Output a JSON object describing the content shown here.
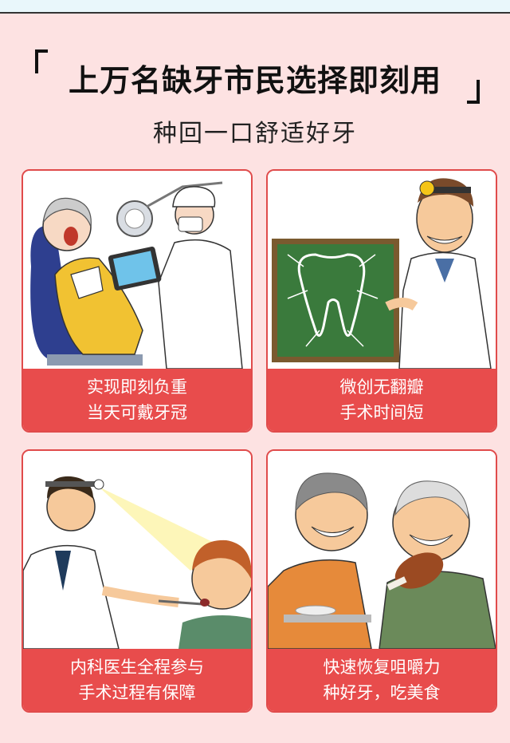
{
  "headline": "上万名缺牙市民选择即刻用",
  "subheadline": "种回一口舒适好牙",
  "cards": [
    {
      "line1": "实现即刻负重",
      "line2": "当天可戴牙冠",
      "illustration": "dentist-patient-tablet"
    },
    {
      "line1": "微创无翻瓣",
      "line2": "手术时间短",
      "illustration": "doctor-tooth-board"
    },
    {
      "line1": "内科医生全程参与",
      "line2": "手术过程有保障",
      "illustration": "doctor-examining-child"
    },
    {
      "line1": "快速恢复咀嚼力",
      "line2": "种好牙，吃美食",
      "illustration": "elderly-couple-eating"
    }
  ],
  "colors": {
    "background": "#fde2e2",
    "caption": "#e84c4c",
    "border": "#e04b4b"
  }
}
